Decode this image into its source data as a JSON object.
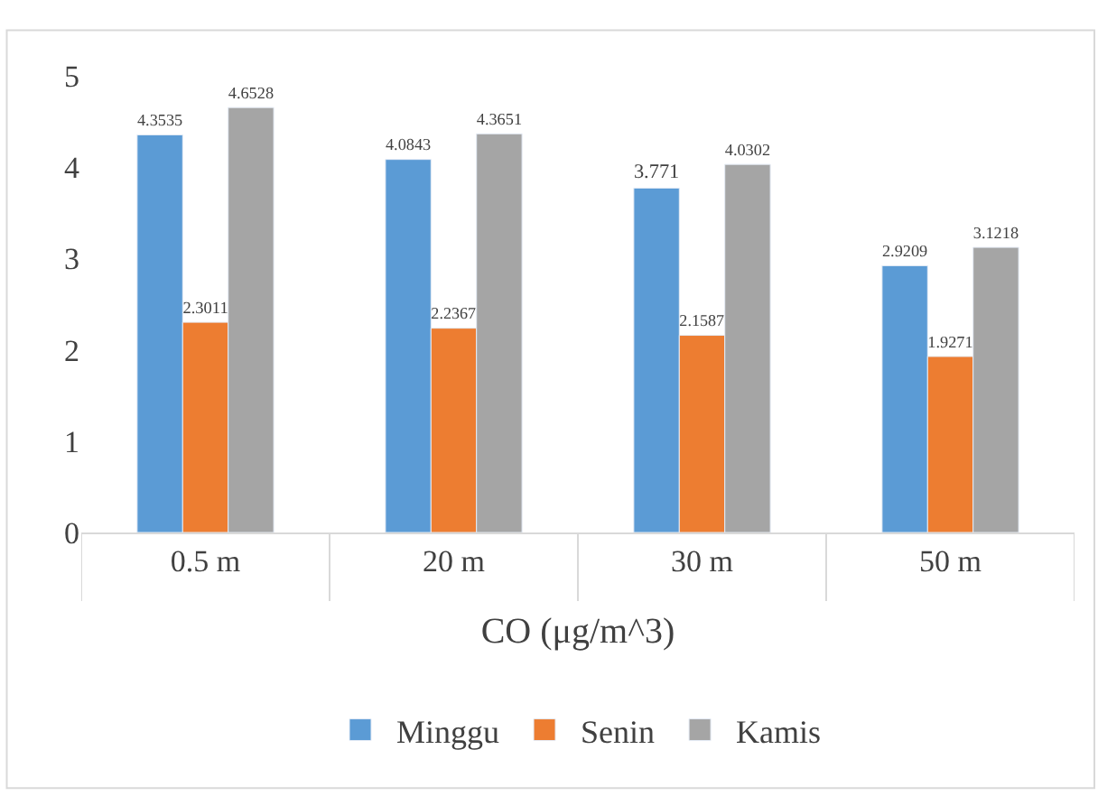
{
  "chart_data": {
    "type": "bar",
    "xlabel": "CO (μg/m^3)",
    "categories": [
      "0.5 m",
      "20 m",
      "30 m",
      "50 m"
    ],
    "series": [
      {
        "name": "Minggu",
        "color": "#5b9bd5",
        "values": [
          4.3535,
          4.0843,
          3.771,
          2.9209
        ]
      },
      {
        "name": "Senin",
        "color": "#ed7d31",
        "values": [
          2.3011,
          2.2367,
          2.1587,
          1.9271
        ]
      },
      {
        "name": "Kamis",
        "color": "#a5a5a5",
        "values": [
          4.6528,
          4.3651,
          4.0302,
          3.1218
        ]
      }
    ],
    "ylim": [
      0,
      5
    ],
    "yticks": [
      0,
      1,
      2,
      3,
      4,
      5
    ],
    "grid": false,
    "legend": "bottom",
    "data_labels": true
  }
}
